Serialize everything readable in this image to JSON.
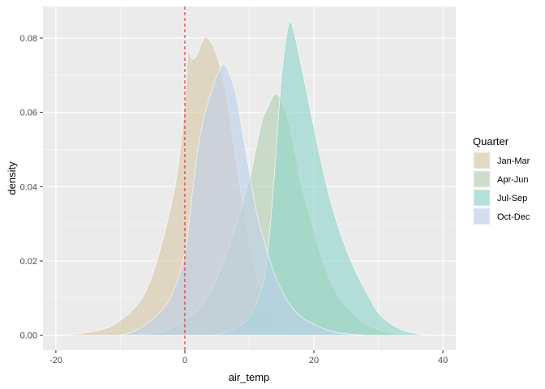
{
  "chart_data": {
    "type": "area",
    "subtype": "density",
    "xlabel": "air_temp",
    "ylabel": "density",
    "xlim": [
      -22,
      42
    ],
    "ylim": [
      -0.004,
      0.0885
    ],
    "x_ticks": [
      -20,
      0,
      20,
      40
    ],
    "x_tick_labels": [
      "-20",
      "0",
      "20",
      "40"
    ],
    "y_ticks": [
      0,
      0.02,
      0.04,
      0.06,
      0.08
    ],
    "y_tick_labels": [
      "0.00",
      "0.02",
      "0.04",
      "0.06",
      "0.08"
    ],
    "grid": true,
    "panel_background": "#ebebeb",
    "grid_color": "#ffffff",
    "reference_line": {
      "x": 0,
      "color": "#e31a1c",
      "style": "dashed"
    },
    "legend": {
      "title": "Quarter",
      "position": "right"
    },
    "series": [
      {
        "name": "Jan-Mar",
        "color": "#d9c9a8",
        "x": [
          -20,
          -16,
          -12,
          -10,
          -8,
          -6,
          -4,
          -2,
          -1,
          0,
          0.5,
          1,
          1.5,
          2,
          3,
          4,
          5,
          6,
          7,
          8,
          9,
          10,
          11,
          12,
          14,
          16,
          18,
          20,
          22
        ],
        "y": [
          0,
          0.0005,
          0.002,
          0.004,
          0.007,
          0.012,
          0.022,
          0.036,
          0.046,
          0.063,
          0.076,
          0.0745,
          0.0745,
          0.076,
          0.08,
          0.079,
          0.075,
          0.068,
          0.058,
          0.046,
          0.035,
          0.025,
          0.017,
          0.011,
          0.005,
          0.002,
          0.0008,
          0.0003,
          0
        ]
      },
      {
        "name": "Apr-Jun",
        "color": "#b6d1b4",
        "x": [
          -8,
          -4,
          -2,
          0,
          2,
          4,
          6,
          8,
          10,
          11,
          12,
          13,
          14,
          15,
          16,
          17,
          18,
          20,
          22,
          24,
          26,
          28,
          30,
          32,
          34
        ],
        "y": [
          0,
          0.0008,
          0.002,
          0.004,
          0.007,
          0.012,
          0.02,
          0.03,
          0.042,
          0.05,
          0.058,
          0.062,
          0.065,
          0.063,
          0.058,
          0.05,
          0.041,
          0.028,
          0.017,
          0.01,
          0.006,
          0.003,
          0.0015,
          0.0005,
          0
        ]
      },
      {
        "name": "Jul-Sep",
        "color": "#8fd6cb",
        "x": [
          4,
          6,
          8,
          10,
          12,
          13,
          14,
          15,
          16,
          16.5,
          17,
          18,
          20,
          22,
          24,
          26,
          28,
          30,
          32,
          34,
          36,
          38
        ],
        "y": [
          0,
          0.0006,
          0.002,
          0.005,
          0.013,
          0.025,
          0.046,
          0.07,
          0.083,
          0.084,
          0.081,
          0.073,
          0.056,
          0.04,
          0.028,
          0.019,
          0.012,
          0.006,
          0.003,
          0.0012,
          0.0004,
          0
        ]
      },
      {
        "name": "Oct-Dec",
        "color": "#bfd1ea",
        "x": [
          -10,
          -8,
          -6,
          -4,
          -2,
          0,
          1,
          2,
          3,
          4,
          5,
          6,
          7,
          8,
          9,
          10,
          11,
          12,
          14,
          16,
          18,
          20,
          22,
          24,
          28
        ],
        "y": [
          0,
          0.001,
          0.003,
          0.006,
          0.011,
          0.022,
          0.036,
          0.05,
          0.059,
          0.065,
          0.07,
          0.073,
          0.07,
          0.064,
          0.054,
          0.044,
          0.034,
          0.027,
          0.016,
          0.009,
          0.005,
          0.003,
          0.0015,
          0.0006,
          0
        ]
      }
    ],
    "fill_opacity": 0.62
  }
}
